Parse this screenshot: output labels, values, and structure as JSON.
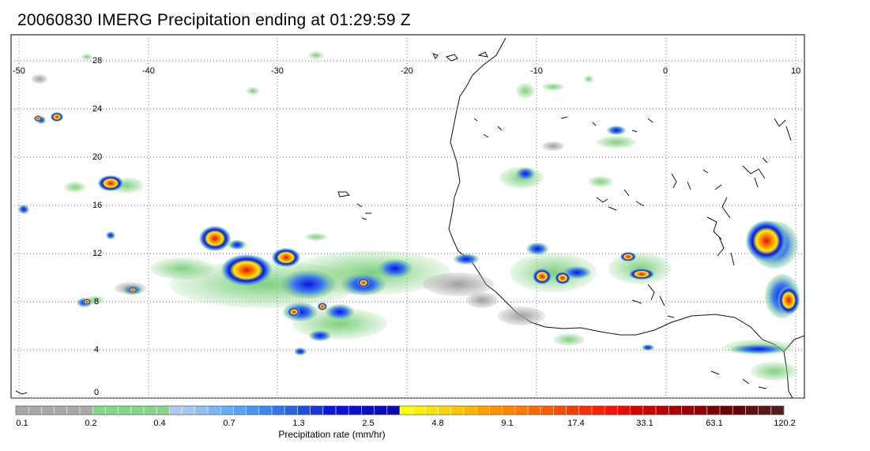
{
  "title": "20060830 IMERG Precipitation ending at 01:29:59 Z",
  "map": {
    "lon_labels": [
      "-50",
      "-40",
      "-30",
      "-20",
      "-10",
      "0",
      "10"
    ],
    "lat_labels": [
      "28",
      "24",
      "20",
      "16",
      "12",
      "8",
      "4",
      "0"
    ],
    "lon_range": [
      -50,
      10
    ],
    "lat_range": [
      -0.5,
      29.5
    ],
    "grid": "dotted",
    "coastline": "West Africa"
  },
  "colorbar": {
    "title": "Precipitation rate (mm/hr)",
    "tick_labels": [
      "0.1",
      "0.2",
      "0.4",
      "0.7",
      "1.3",
      "2.5",
      "4.8",
      "9.1",
      "17.4",
      "33.1",
      "63.1",
      "120.2"
    ],
    "colors": [
      "#a8a8a8",
      "#a8a8a8",
      "#a8a8a8",
      "#a8a8a8",
      "#a8a8a8",
      "#a8a8a8",
      "#86d68a",
      "#86d68a",
      "#86d68a",
      "#86d68a",
      "#86d68a",
      "#86d68a",
      "#b0c8f2",
      "#a6c6f6",
      "#8fc0f6",
      "#7ab6f6",
      "#66abf4",
      "#5aa2f2",
      "#4a94f0",
      "#3f86ee",
      "#3575ea",
      "#2a62e6",
      "#1e4ee2",
      "#1438de",
      "#0a14e6",
      "#0a12dc",
      "#0a10d2",
      "#0a0ec8",
      "#0a0cbe",
      "#0a0ab4",
      "#ffff00",
      "#fff000",
      "#ffe200",
      "#ffd400",
      "#ffc400",
      "#ffb400",
      "#ffa200",
      "#ff9400",
      "#ff8600",
      "#ff7800",
      "#ff6a00",
      "#ff5c00",
      "#ff4c00",
      "#ff3c00",
      "#ff2e00",
      "#ff2000",
      "#f81400",
      "#ee0a00",
      "#d60000",
      "#c80000",
      "#ba0000",
      "#ac0000",
      "#9e0000",
      "#900000",
      "#7a0000",
      "#6e0000",
      "#640000",
      "#5e1010",
      "#581818",
      "#521c1c"
    ]
  }
}
